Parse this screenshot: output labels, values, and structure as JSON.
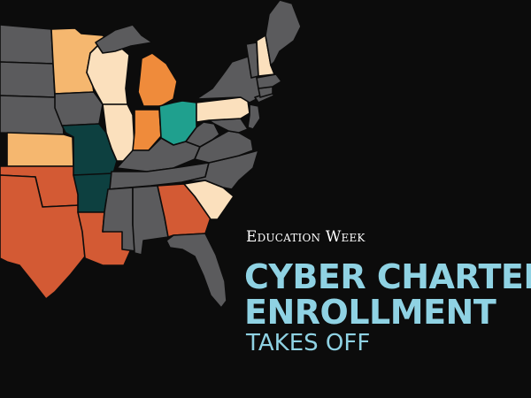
{
  "brand": {
    "name": "Education Week"
  },
  "headline": {
    "line1": "CYBER CHARTER",
    "line2": "ENROLLMENT",
    "subtitle": "TAKES OFF"
  },
  "colors": {
    "background": "#0c0c0c",
    "default_state": "#5b5b5d",
    "headline": "#8fd2e3",
    "category_cream": "#fbe0bd",
    "category_peach": "#f5b76f",
    "category_orange": "#ef8b3b",
    "category_red_orange": "#d35a34",
    "category_teal": "#1fa08e",
    "category_dark_teal": "#0d4040"
  },
  "map": {
    "highlighted_states": [
      {
        "state": "Minnesota",
        "color": "#f5b76f"
      },
      {
        "state": "Wisconsin",
        "color": "#fbe0bd"
      },
      {
        "state": "Michigan",
        "color": "#ef8b3b"
      },
      {
        "state": "Illinois",
        "color": "#fbe0bd"
      },
      {
        "state": "Indiana",
        "color": "#ef8b3b"
      },
      {
        "state": "Ohio",
        "color": "#1fa08e"
      },
      {
        "state": "Pennsylvania",
        "color": "#fbe0bd"
      },
      {
        "state": "New Hampshire",
        "color": "#fbe0bd"
      },
      {
        "state": "Kansas",
        "color": "#f5b76f"
      },
      {
        "state": "Missouri",
        "color": "#0d4040"
      },
      {
        "state": "Arkansas",
        "color": "#0d4040"
      },
      {
        "state": "Oklahoma",
        "color": "#d35a34"
      },
      {
        "state": "Texas",
        "color": "#d35a34"
      },
      {
        "state": "Louisiana",
        "color": "#d35a34"
      },
      {
        "state": "Georgia",
        "color": "#d35a34"
      },
      {
        "state": "South Carolina",
        "color": "#fbe0bd"
      }
    ]
  }
}
